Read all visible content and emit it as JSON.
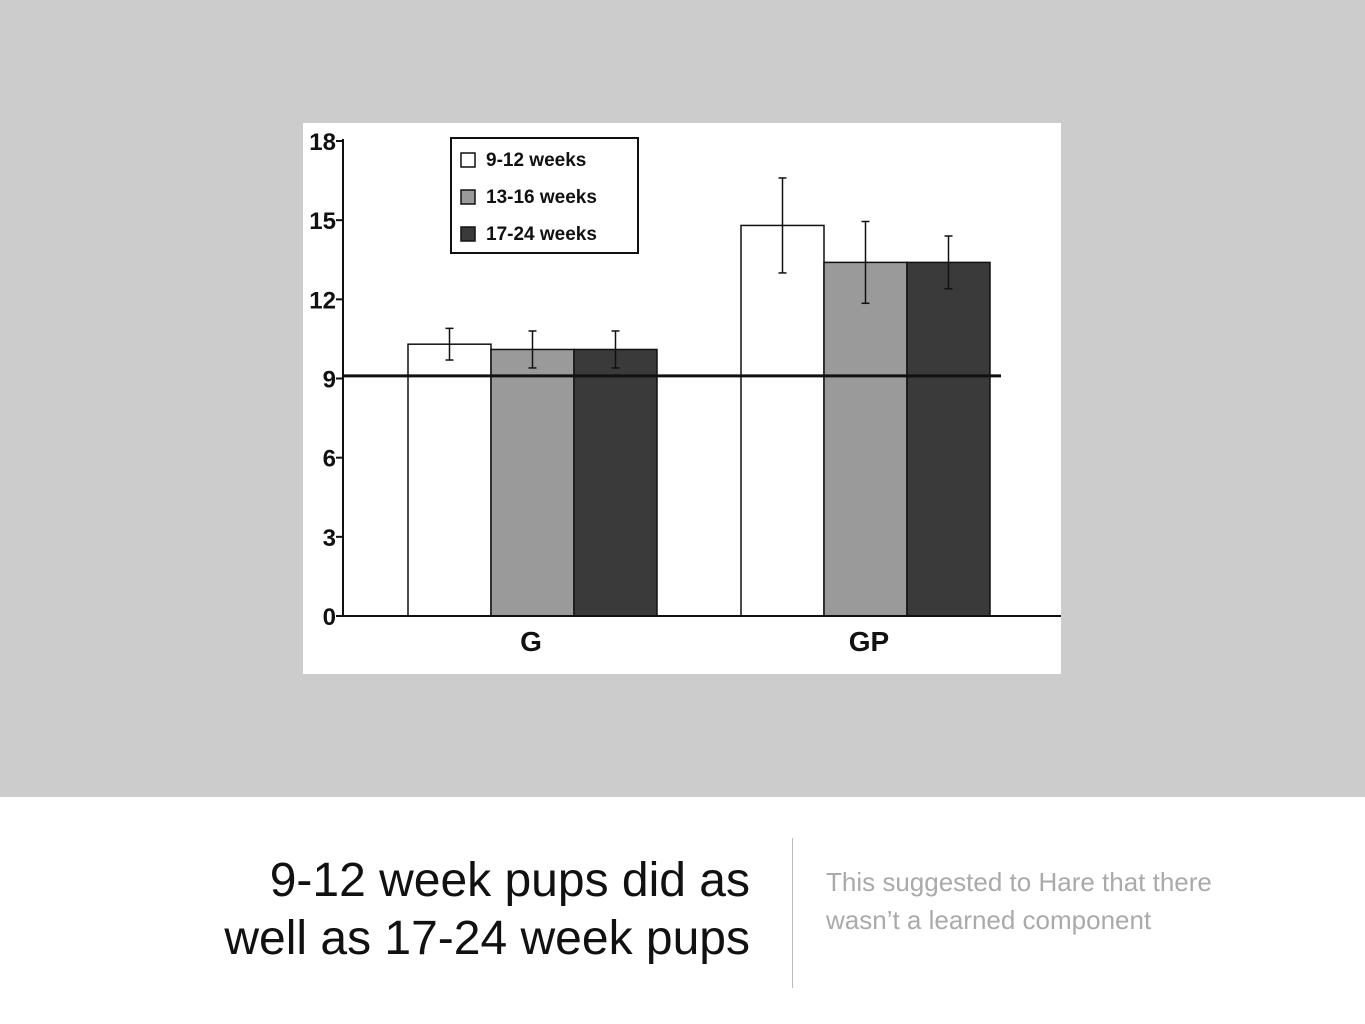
{
  "slide": {
    "headline_line1": "9-12 week pups did as",
    "headline_line2": "well as 17-24 week pups",
    "subtext_line1": "This suggested to Hare that there",
    "subtext_line2": "wasn’t a learned component"
  },
  "colors": {
    "background_top": "#cccccc",
    "series_1": "#ffffff",
    "series_2": "#9a9a9a",
    "series_3": "#3a3a3a"
  },
  "chart_data": {
    "type": "bar",
    "categories": [
      "G",
      "GP"
    ],
    "series": [
      {
        "name": "9-12 weeks",
        "values": [
          10.3,
          14.8
        ],
        "errors": [
          0.6,
          1.8
        ]
      },
      {
        "name": "13-16 weeks",
        "values": [
          10.1,
          13.4
        ],
        "errors": [
          0.7,
          1.55
        ]
      },
      {
        "name": "17-24 weeks",
        "values": [
          10.1,
          13.4
        ],
        "errors": [
          0.7,
          1.0
        ]
      }
    ],
    "reference_line": 9.1,
    "yticks": [
      "0",
      "3",
      "6",
      "9",
      "12",
      "15",
      "18"
    ],
    "ylim": [
      0,
      18
    ],
    "legend_position": "top-left",
    "grid": false
  }
}
